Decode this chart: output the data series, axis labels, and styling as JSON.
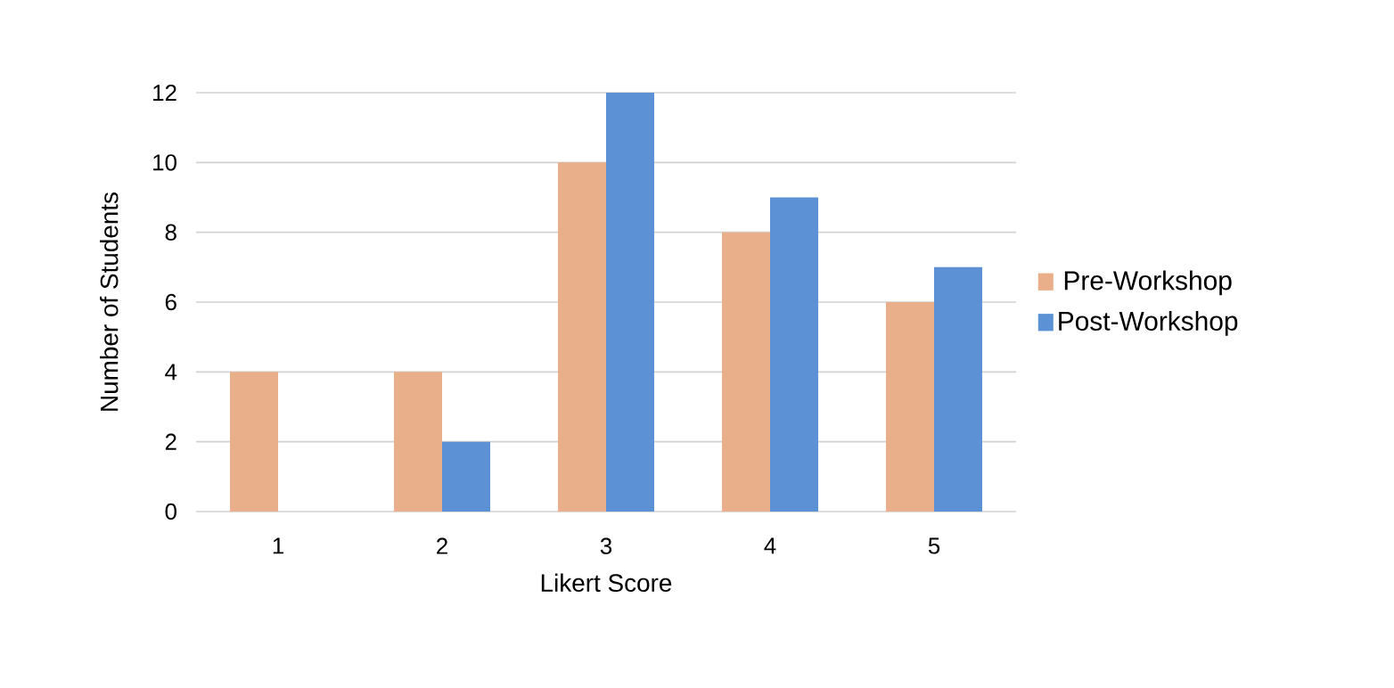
{
  "chart_data": {
    "type": "bar",
    "xlabel": "Likert Score",
    "ylabel": "Number of Students",
    "categories": [
      "1",
      "2",
      "3",
      "4",
      "5"
    ],
    "series": [
      {
        "name": "Pre-Workshop",
        "color": "#e9ae8a",
        "values": [
          4,
          4,
          10,
          8,
          6
        ]
      },
      {
        "name": "Post-Workshop",
        "color": "#5d91d6",
        "values": [
          0,
          2,
          12,
          9,
          7
        ]
      }
    ],
    "ylim": [
      0,
      12
    ],
    "yticks": [
      0,
      2,
      4,
      6,
      8,
      10,
      12
    ],
    "grid": "y",
    "legend": "right"
  }
}
